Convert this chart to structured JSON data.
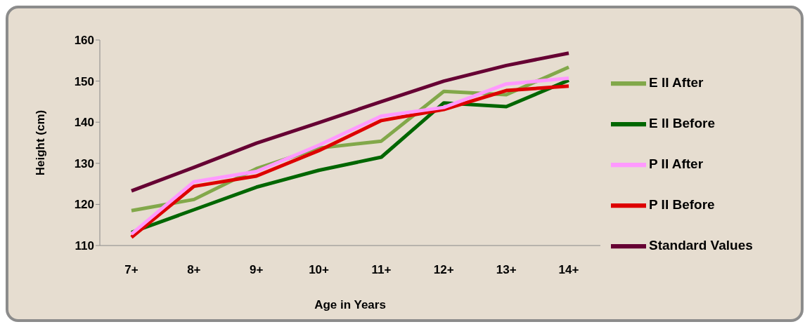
{
  "chart_data": {
    "type": "line",
    "xlabel": "Age in Years",
    "ylabel": "Height (cm)",
    "categories": [
      "7+",
      "8+",
      "9+",
      "10+",
      "11+",
      "12+",
      "13+",
      "14+"
    ],
    "series": [
      {
        "name": "Standard Values",
        "color": "#660033",
        "values": [
          123.3,
          129,
          134.9,
          139.9,
          145,
          150,
          153.8,
          156.8
        ]
      },
      {
        "name": "E II Before",
        "color": "#006600",
        "values": [
          113.2,
          118.7,
          124.2,
          128.3,
          131.5,
          144.7,
          143.8,
          150.2
        ]
      },
      {
        "name": "E II After",
        "color": "#82a84a",
        "values": [
          118.5,
          121.2,
          128.7,
          133.7,
          135.4,
          147.5,
          146.7,
          153.4
        ]
      },
      {
        "name": "P II Before",
        "color": "#dd0000",
        "values": [
          112,
          124.4,
          126.9,
          133.1,
          140.4,
          143.1,
          147.7,
          148.8
        ]
      },
      {
        "name": "P II After",
        "color": "#ff99ff",
        "values": [
          112.8,
          125.5,
          128,
          134.4,
          141.5,
          143.6,
          149.3,
          150.7
        ]
      }
    ],
    "ylim": [
      110,
      160
    ],
    "yticks": [
      110,
      120,
      130,
      140,
      150,
      160
    ],
    "grid": false,
    "legend": "right",
    "marker": "none",
    "line_style": "solid"
  }
}
